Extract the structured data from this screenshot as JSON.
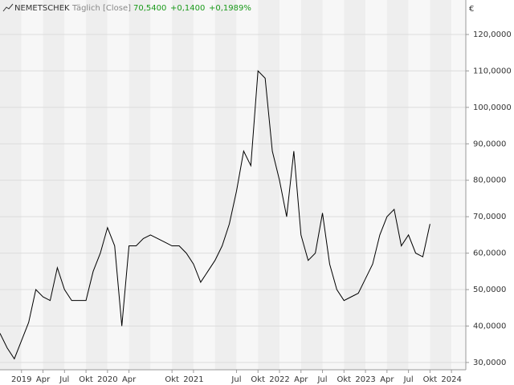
{
  "chart_data": {
    "type": "line",
    "title": "NEMETSCHEK",
    "subtitle": "Täglich [Close]",
    "quote": [
      "70,5400",
      "+0,1400",
      "+0,1989%"
    ],
    "y_unit": "€",
    "color": "#000000",
    "quote_color": "#1a9a1a",
    "x": [
      "2018-10",
      "2018-11",
      "2018-12",
      "2019-01",
      "2019-02",
      "2019-03",
      "2019-04",
      "2019-05",
      "2019-06",
      "2019-07",
      "2019-08",
      "2019-09",
      "2019-10",
      "2019-11",
      "2019-12",
      "2020-01",
      "2020-02",
      "2020-03",
      "2020-04",
      "2020-05",
      "2020-06",
      "2020-07",
      "2020-08",
      "2020-09",
      "2020-10",
      "2020-11",
      "2020-12",
      "2021-01",
      "2021-02",
      "2021-03",
      "2021-04",
      "2021-05",
      "2021-06",
      "2021-07",
      "2021-08",
      "2021-09",
      "2021-10",
      "2021-11",
      "2021-12",
      "2022-01",
      "2022-02",
      "2022-03",
      "2022-04",
      "2022-05",
      "2022-06",
      "2022-07",
      "2022-08",
      "2022-09",
      "2022-10",
      "2022-11",
      "2022-12",
      "2023-01",
      "2023-02",
      "2023-03",
      "2023-04",
      "2023-05",
      "2023-06",
      "2023-07",
      "2023-08",
      "2023-09",
      "2023-10"
    ],
    "values": [
      38,
      34,
      31,
      36,
      41,
      50,
      48,
      47,
      56,
      50,
      47,
      47,
      47,
      55,
      60,
      67,
      62,
      40,
      62,
      62,
      64,
      65,
      64,
      63,
      62,
      62,
      60,
      57,
      52,
      55,
      58,
      62,
      68,
      77,
      88,
      84,
      110,
      108,
      88,
      80,
      70,
      88,
      65,
      58,
      60,
      71,
      57,
      50,
      47,
      48,
      49,
      53,
      57,
      65,
      70,
      72,
      62,
      65,
      60,
      59,
      68
    ],
    "xlim": [
      "2018-10",
      "2024-03"
    ],
    "xticks": [
      {
        "value": "2019-01",
        "label": "2019"
      },
      {
        "value": "2019-04",
        "label": "Apr"
      },
      {
        "value": "2019-07",
        "label": "Jul"
      },
      {
        "value": "2019-10",
        "label": "Okt"
      },
      {
        "value": "2020-01",
        "label": "2020"
      },
      {
        "value": "2020-04",
        "label": "Apr"
      },
      {
        "value": "2020-10",
        "label": "Okt"
      },
      {
        "value": "2021-01",
        "label": "2021"
      },
      {
        "value": "2021-07",
        "label": "Jul"
      },
      {
        "value": "2021-10",
        "label": "Okt"
      },
      {
        "value": "2022-01",
        "label": "2022"
      },
      {
        "value": "2022-04",
        "label": "Apr"
      },
      {
        "value": "2022-07",
        "label": "Jul"
      },
      {
        "value": "2022-10",
        "label": "Okt"
      },
      {
        "value": "2023-01",
        "label": "2023"
      },
      {
        "value": "2023-04",
        "label": "Apr"
      },
      {
        "value": "2023-07",
        "label": "Jul"
      },
      {
        "value": "2023-10",
        "label": "Okt"
      },
      {
        "value": "2024-01",
        "label": "2024"
      }
    ],
    "ylim": [
      28,
      125.5
    ],
    "yticks": [
      {
        "value": 30,
        "label": "30,0000"
      },
      {
        "value": 40,
        "label": "40,0000"
      },
      {
        "value": 50,
        "label": "50,0000"
      },
      {
        "value": 60,
        "label": "60,0000"
      },
      {
        "value": 70,
        "label": "70,0000"
      },
      {
        "value": 80,
        "label": "80,0000"
      },
      {
        "value": 90,
        "label": "90,0000"
      },
      {
        "value": 100,
        "label": "100,0000"
      },
      {
        "value": 110,
        "label": "110,0000"
      },
      {
        "value": 120,
        "label": "120,0000"
      }
    ],
    "grid": true
  }
}
